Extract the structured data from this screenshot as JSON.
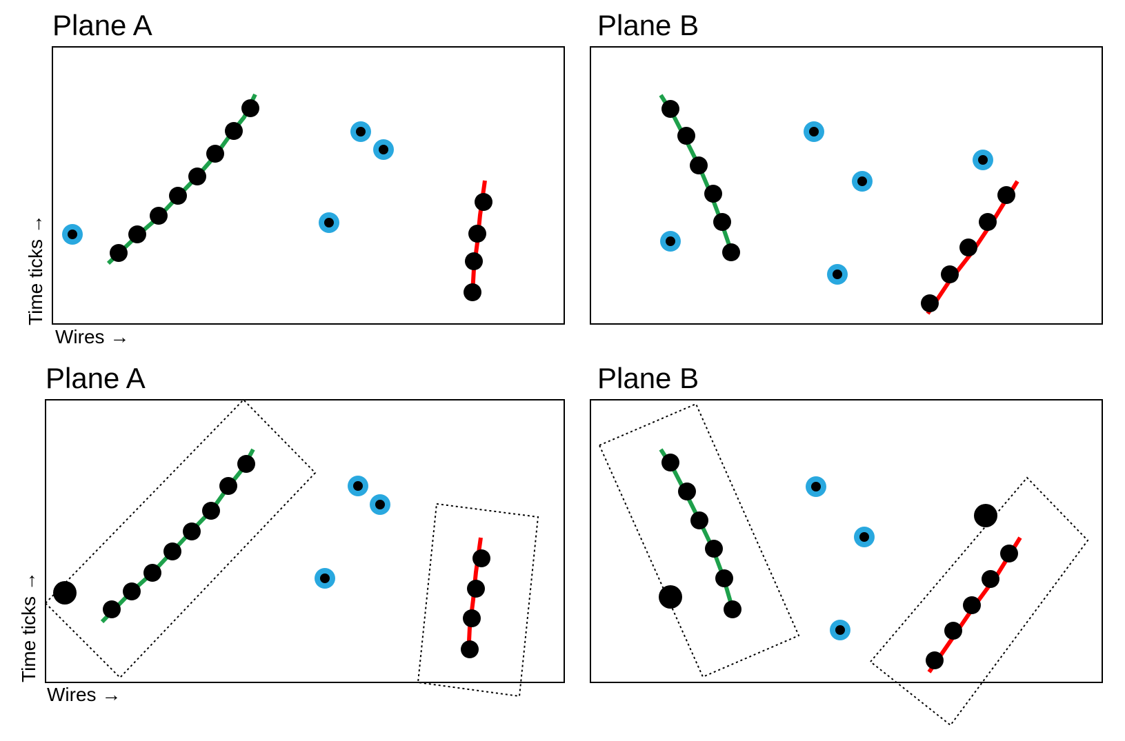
{
  "panels": [
    {
      "title": "Plane A",
      "xlabel": "Wires →",
      "ylabel": "Time ticks →"
    },
    {
      "title": "Plane B"
    },
    {
      "title": "Plane A",
      "xlabel": "Wires →",
      "ylabel": "Time ticks →"
    },
    {
      "title": "Plane B"
    }
  ],
  "colors": {
    "hit": "#000000",
    "unclustered_ring": "#29a8df",
    "track_green": "#1ea04b",
    "track_red": "#ff0000",
    "frame": "#000000"
  }
}
